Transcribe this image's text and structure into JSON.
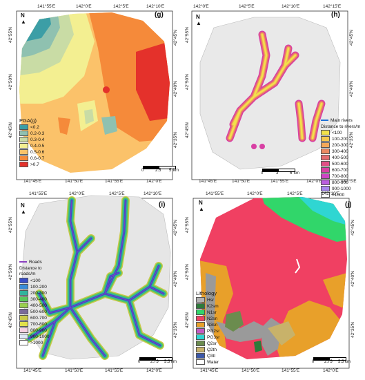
{
  "panels": {
    "g": {
      "label": "(g)",
      "top_ticks": [
        "141°55'E",
        "142°0'E",
        "142°5'E",
        "142°10'E"
      ],
      "bottom_ticks": [
        "141°45'E",
        "141°50'E",
        "141°55'E",
        "142°0'E"
      ],
      "left_ticks": [
        "42°55'N",
        "42°50'N",
        "42°45'N"
      ],
      "right_ticks": [
        "42°45'N",
        "42°40'N",
        "42°35'N"
      ],
      "legend_title": "PGA(g)",
      "legend": [
        {
          "label": "<0.2",
          "color": "#3c9ea6"
        },
        {
          "label": "0.2-0.3",
          "color": "#8fc1b0"
        },
        {
          "label": "0.3-0.4",
          "color": "#c9dca5"
        },
        {
          "label": "0.4-0.5",
          "color": "#f3ef91"
        },
        {
          "label": "0.5-0.6",
          "color": "#fbc26a"
        },
        {
          "label": "0.6-0.7",
          "color": "#f58a3a"
        },
        {
          "label": ">0.7",
          "color": "#e4312b"
        }
      ],
      "scale": {
        "labels": [
          "0",
          "2.5",
          "5"
        ],
        "unit": "km"
      }
    },
    "h": {
      "label": "(h)",
      "top_ticks": [
        "142°0'E",
        "142°5'E",
        "142°10'E",
        "142°15'E"
      ],
      "bottom_ticks": [
        "141°45'E",
        "141°50'E",
        "141°55'E",
        "142°0'E",
        "142°5'E"
      ],
      "left_ticks": [
        "42°55'N",
        "42°50'N",
        "42°45'N"
      ],
      "right_ticks": [
        "42°45'N",
        "42°40'N",
        "42°35'N"
      ],
      "legend_line": "Main rivers",
      "legend_title": "Distance to rivers/m",
      "legend": [
        {
          "label": "<100",
          "color": "#f2e24a"
        },
        {
          "label": "100-200",
          "color": "#f4c84e"
        },
        {
          "label": "200-300",
          "color": "#f2a85a"
        },
        {
          "label": "300-400",
          "color": "#ec8a62"
        },
        {
          "label": "400-500",
          "color": "#e56c70"
        },
        {
          "label": "500-600",
          "color": "#e04f86"
        },
        {
          "label": "600-700",
          "color": "#d840a4"
        },
        {
          "label": "700-800",
          "color": "#cc44c4"
        },
        {
          "label": "800-900",
          "color": "#bb5ee0"
        },
        {
          "label": "900-1000",
          "color": "#a887ef"
        },
        {
          "label": ">1000",
          "color": "#ffffff"
        }
      ],
      "scale": {
        "labels": [
          "0",
          "3",
          "6"
        ],
        "unit": "km"
      }
    },
    "i": {
      "label": "(i)",
      "top_ticks": [
        "141°55'E",
        "142°0'E",
        "142°5'E",
        "142°10'E"
      ],
      "bottom_ticks": [
        "141°45'E",
        "141°50'E",
        "141°55'E",
        "142°0'E"
      ],
      "left_ticks": [
        "42°55'N",
        "42°50'N",
        "42°45'N"
      ],
      "right_ticks": [
        "42°45'N",
        "42°40'N",
        "42°35'N"
      ],
      "legend_line": "Roads",
      "legend_title": "Distance to roads/m",
      "legend": [
        {
          "label": "<100",
          "color": "#3a4ec8"
        },
        {
          "label": "100-200",
          "color": "#3a8cd8"
        },
        {
          "label": "200-300",
          "color": "#31b39c"
        },
        {
          "label": "300-400",
          "color": "#5cc75a"
        },
        {
          "label": "400-500",
          "color": "#9ad04e"
        },
        {
          "label": "500-600",
          "color": "#7a6a9a"
        },
        {
          "label": "600-700",
          "color": "#c9c94a"
        },
        {
          "label": "700-800",
          "color": "#e0e04a"
        },
        {
          "label": "800-900",
          "color": "#f5cfe0"
        },
        {
          "label": "900-1000",
          "color": "#dfe8f5"
        },
        {
          "label": ">1000",
          "color": "#ffffff"
        }
      ],
      "scale": {
        "labels": [
          "0",
          "2.75",
          "5.5"
        ],
        "unit": "km"
      }
    },
    "j": {
      "label": "(j)",
      "top_ticks": [
        "141°55'E",
        "142°0'E",
        "142°5'E",
        "142°10'E"
      ],
      "bottom_ticks": [
        "141°45'E",
        "141°50'E",
        "141°55'E",
        "142°0'E"
      ],
      "left_ticks": [
        "42°55'N",
        "42°50'N",
        "42°45'N"
      ],
      "right_ticks": [
        "42°45'N",
        "42°40'N",
        "42°35'N"
      ],
      "legend_title": "Lithology",
      "legend": [
        {
          "label": "Hsr",
          "color": "#b3b3b3"
        },
        {
          "label": "K2sm",
          "color": "#2e7a3a"
        },
        {
          "label": "N1sr",
          "color": "#31d66a"
        },
        {
          "label": "N2sn",
          "color": "#f04062"
        },
        {
          "label": "N3sn",
          "color": "#e8a02a"
        },
        {
          "label": "PG2sr",
          "color": "#c45ac2"
        },
        {
          "label": "PG3sr",
          "color": "#2fd6d2"
        },
        {
          "label": "Q2sr",
          "color": "#6b8c4e"
        },
        {
          "label": "Q2th",
          "color": "#c8b26a"
        },
        {
          "label": "Q3tl",
          "color": "#3b57a8"
        },
        {
          "label": "Water",
          "color": "#ffffff"
        }
      ],
      "scale": {
        "labels": [
          "0",
          "2.75",
          "5.5"
        ],
        "unit": "km"
      }
    }
  },
  "north_label": "N"
}
